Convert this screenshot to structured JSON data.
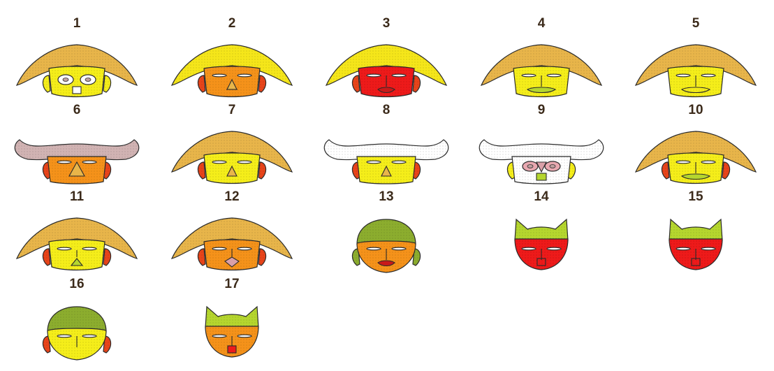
{
  "colors": {
    "outline": "#2b2b2b",
    "brim": "#e8b54a",
    "brim_yellow": "#f5e61a",
    "brim_mauve": "#d1b3b3",
    "brim_white": "#ffffff",
    "cap_green": "#8cad2e",
    "cap_light": "#b5d62e",
    "yellow": "#f5ee1a",
    "orange": "#f5921a",
    "red": "#ee1a1a",
    "white": "#ffffff",
    "ear_red": "#e8441a",
    "nose_pink": "#d9a0a8",
    "mouth_red": "#c81a1a",
    "mouth_green": "#b5d62e",
    "eye_pink": "#e8a8b0"
  },
  "faces": [
    {
      "label": "1",
      "hat": "brim",
      "brim_color": "brim",
      "face_color": "yellow",
      "style": "mask-eyes",
      "nose": "none",
      "mouth": "square",
      "ears": "yellow"
    },
    {
      "label": "2",
      "hat": "brim",
      "brim_color": "brim_yellow",
      "face_color": "orange",
      "style": "normal",
      "nose": "triangle",
      "mouth": "line",
      "ears": "red"
    },
    {
      "label": "3",
      "hat": "brim",
      "brim_color": "brim_yellow",
      "face_color": "red",
      "style": "normal",
      "nose": "line",
      "mouth": "lips-red",
      "ears": "red"
    },
    {
      "label": "4",
      "hat": "brim",
      "brim_color": "brim",
      "face_color": "yellow",
      "style": "normal",
      "nose": "line",
      "mouth": "wide-green",
      "ears": "none"
    },
    {
      "label": "5",
      "hat": "brim",
      "brim_color": "brim",
      "face_color": "yellow",
      "style": "normal",
      "nose": "line",
      "mouth": "wide",
      "ears": "none"
    },
    {
      "label": "6",
      "hat": "horned",
      "brim_color": "brim_mauve",
      "face_color": "orange",
      "style": "normal",
      "nose": "triangle-big",
      "mouth": "none",
      "ears": "red"
    },
    {
      "label": "7",
      "hat": "brim",
      "brim_color": "brim",
      "face_color": "yellow",
      "style": "normal",
      "nose": "triangle",
      "mouth": "none",
      "ears": "red"
    },
    {
      "label": "8",
      "hat": "horned",
      "brim_color": "brim_white",
      "face_color": "yellow",
      "style": "normal",
      "nose": "triangle",
      "mouth": "none",
      "ears": "red"
    },
    {
      "label": "9",
      "hat": "horned",
      "brim_color": "brim_white",
      "face_color": "white",
      "style": "mask-eyes-pink",
      "nose": "pink-triangle",
      "mouth": "square-green",
      "ears": "yellow"
    },
    {
      "label": "10",
      "hat": "brim",
      "brim_color": "brim",
      "face_color": "yellow",
      "style": "normal",
      "nose": "line",
      "mouth": "wide-green",
      "ears": "red"
    },
    {
      "label": "11",
      "hat": "brim",
      "brim_color": "brim",
      "face_color": "yellow",
      "style": "normal",
      "nose": "small",
      "mouth": "triangle-green",
      "ears": "red"
    },
    {
      "label": "12",
      "hat": "brim",
      "brim_color": "brim",
      "face_color": "orange",
      "style": "normal",
      "nose": "line",
      "mouth": "pink-diamond",
      "ears": "red"
    },
    {
      "label": "13",
      "hat": "cap",
      "brim_color": "cap_green",
      "face_color": "orange",
      "style": "normal",
      "nose": "line",
      "mouth": "lips-red",
      "ears": "green"
    },
    {
      "label": "14",
      "hat": "cat",
      "brim_color": "cap_light",
      "face_color": "red",
      "style": "normal",
      "nose": "line",
      "mouth": "box",
      "ears": "none"
    },
    {
      "label": "15",
      "hat": "cat",
      "brim_color": "cap_light",
      "face_color": "red",
      "style": "normal",
      "nose": "line",
      "mouth": "box",
      "ears": "none"
    },
    {
      "label": "16",
      "hat": "cap",
      "brim_color": "cap_green",
      "face_color": "yellow",
      "style": "normal",
      "nose": "line",
      "mouth": "none",
      "ears": "red"
    },
    {
      "label": "17",
      "hat": "cat",
      "brim_color": "cap_light",
      "face_color": "orange",
      "style": "normal",
      "nose": "line",
      "mouth": "box-red",
      "ears": "none"
    }
  ]
}
